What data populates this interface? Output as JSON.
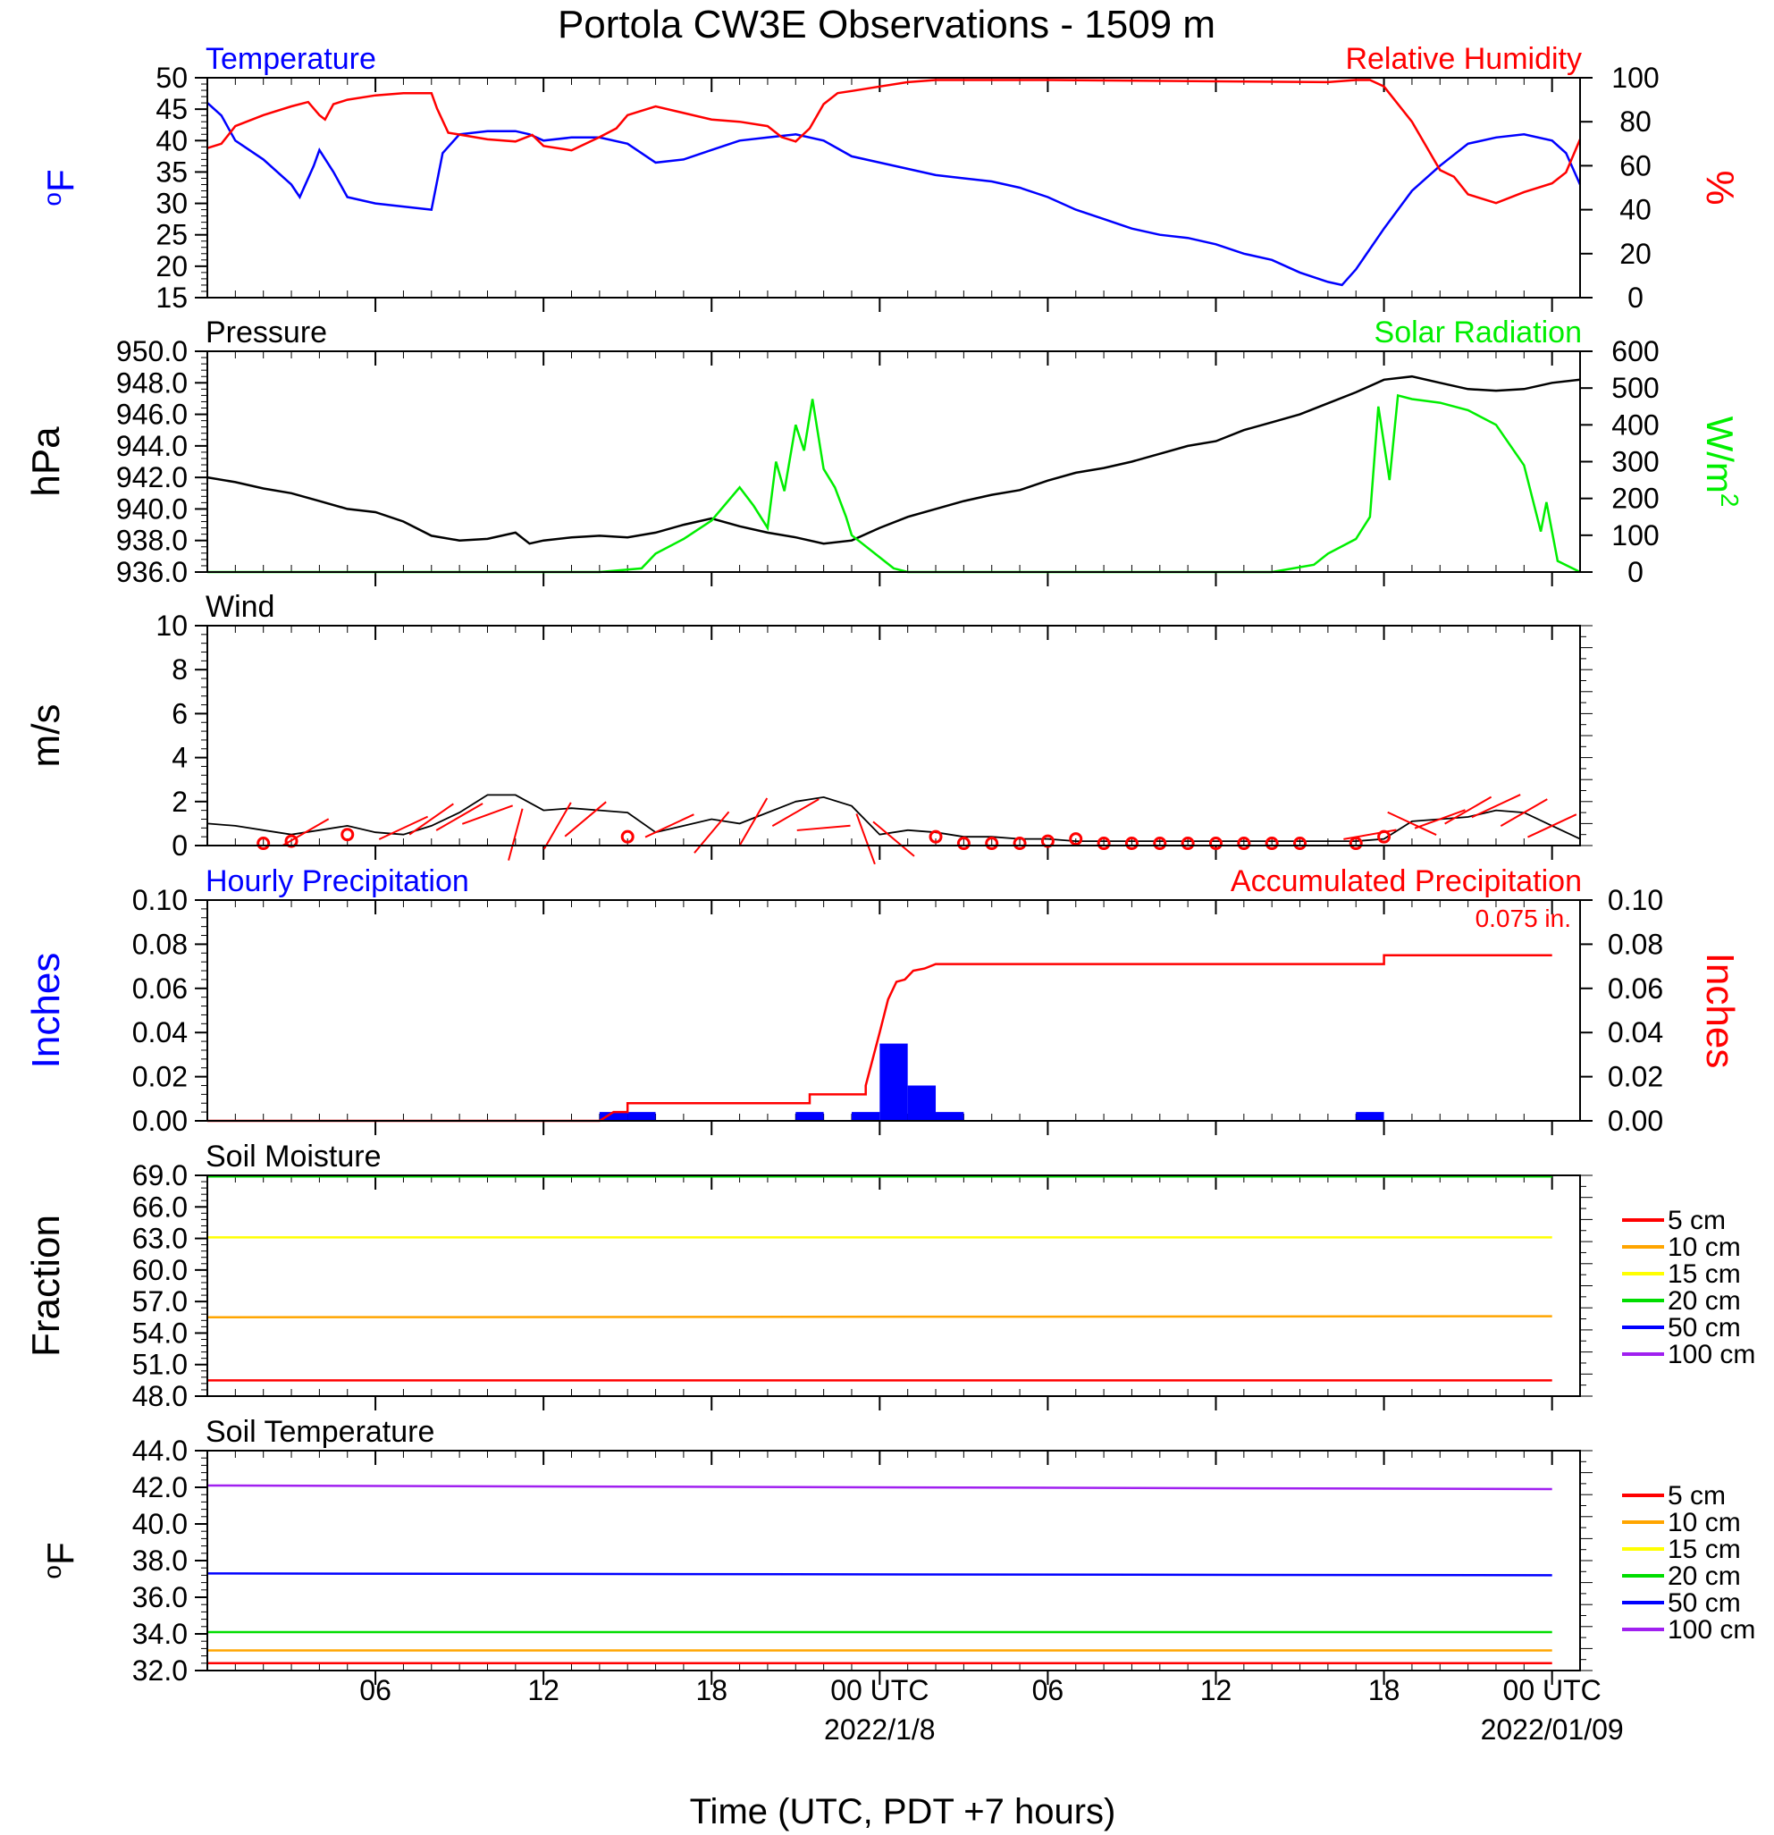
{
  "title": "Portola CW3E Observations - 1509 m",
  "xaxis": {
    "hours_range": [
      0,
      48
    ],
    "tick_hours": [
      6,
      12,
      18,
      24,
      30,
      36,
      42,
      48
    ],
    "tick_labels": [
      "06",
      "12",
      "18",
      "00 UTC",
      "06",
      "12",
      "18",
      "00 UTC"
    ],
    "date_labels": [
      {
        "hour": 24,
        "text": "2022/1/8"
      },
      {
        "hour": 48,
        "text": "2022/01/09"
      }
    ],
    "label": "Time (UTC, PDT +7 hours)"
  },
  "colors": {
    "temperature": "#0000ff",
    "humidity": "#ff0000",
    "pressure": "#000000",
    "solar": "#00ee00",
    "wind": "#000000",
    "barb": "#ff0000",
    "hourly_precip": "#0000ff",
    "accum_precip": "#ff0000",
    "depth_5cm": "#ff0000",
    "depth_10cm": "#ffa500",
    "depth_15cm": "#ffff00",
    "depth_20cm": "#00dd00",
    "depth_50cm": "#0000ff",
    "depth_100cm": "#a020f0"
  },
  "chart_data": [
    {
      "type": "line",
      "panel": "temperature_humidity",
      "left_title": "Temperature",
      "right_title": "Relative Humidity",
      "ylabel_left": "oF",
      "ylabel_right": "%",
      "ylim_left": [
        15,
        50
      ],
      "ylim_right": [
        0,
        100
      ],
      "yticks_left": [
        "50",
        "45",
        "40",
        "35",
        "30",
        "25",
        "20",
        "15"
      ],
      "yticks_right": [
        "100",
        "80",
        "60",
        "40",
        "20",
        "0"
      ],
      "series": [
        {
          "name": "Temperature",
          "axis": "left",
          "x": [
            0,
            0.5,
            1,
            2,
            3,
            3.3,
            3.8,
            4,
            4.5,
            5,
            6,
            7,
            8,
            8.4,
            9,
            10,
            11,
            11.5,
            12,
            13,
            14,
            15,
            16,
            17,
            18,
            19,
            20,
            21,
            22,
            23,
            24,
            25,
            26,
            27,
            28,
            29,
            30,
            31,
            32,
            33,
            34,
            35,
            36,
            37,
            38,
            39,
            40,
            40.5,
            41,
            42,
            43,
            44,
            45,
            46,
            47,
            48,
            48.5,
            49
          ],
          "y": [
            46,
            44,
            40,
            37,
            33,
            31,
            36,
            38.5,
            35,
            31,
            30,
            29.5,
            29,
            38,
            41,
            41.5,
            41.5,
            41,
            40,
            40.5,
            40.5,
            39.5,
            36.5,
            37,
            38.5,
            40,
            40.5,
            41,
            40,
            37.5,
            36.5,
            35.5,
            34.5,
            34,
            33.5,
            32.5,
            31,
            29,
            27.5,
            26,
            25,
            24.5,
            23.5,
            22,
            21,
            19,
            17.5,
            17,
            19.5,
            26,
            32,
            36,
            39.5,
            40.5,
            41,
            40,
            38,
            33
          ]
        },
        {
          "name": "Relative Humidity",
          "axis": "right",
          "x": [
            0,
            0.5,
            1,
            2,
            3,
            3.6,
            4,
            4.2,
            4.5,
            5,
            6,
            7,
            8,
            8.2,
            8.6,
            10,
            11,
            11.6,
            12,
            13,
            14,
            14.6,
            15,
            16,
            17,
            18,
            19,
            20,
            20.5,
            21,
            21.5,
            22,
            22.5,
            23,
            24,
            25,
            26,
            30,
            40,
            41,
            41.5,
            42,
            43,
            43.5,
            44,
            44.5,
            45,
            45.5,
            46,
            47,
            48,
            48.5,
            49
          ],
          "y": [
            68,
            70,
            78,
            83,
            87,
            89,
            83,
            81,
            88,
            90,
            92,
            93,
            93,
            86,
            75,
            72,
            71,
            74,
            69,
            67,
            73,
            77,
            83,
            87,
            84,
            81,
            80,
            78,
            73,
            71,
            77,
            88,
            93,
            94,
            96,
            98,
            99,
            99,
            98,
            99,
            99,
            96,
            80,
            69,
            58,
            55,
            47,
            45,
            43,
            48,
            52,
            57,
            72
          ]
        }
      ]
    },
    {
      "type": "line",
      "panel": "pressure_solar",
      "left_title": "Pressure",
      "right_title": "Solar Radiation",
      "ylabel_left": "hPa",
      "ylabel_right": "W/m2",
      "ylim_left": [
        936,
        950
      ],
      "ylim_right": [
        0,
        600
      ],
      "yticks_left": [
        "950.0",
        "948.0",
        "946.0",
        "944.0",
        "942.0",
        "940.0",
        "938.0",
        "936.0"
      ],
      "yticks_right": [
        "600",
        "500",
        "400",
        "300",
        "200",
        "100",
        "0"
      ],
      "series": [
        {
          "name": "Pressure",
          "axis": "left",
          "x": [
            0,
            1,
            2,
            3,
            4,
            5,
            6,
            7,
            8,
            9,
            10,
            11,
            11.5,
            12,
            13,
            14,
            15,
            16,
            17,
            18,
            19,
            20,
            21,
            22,
            23,
            24,
            25,
            26,
            27,
            28,
            29,
            30,
            31,
            32,
            33,
            34,
            35,
            36,
            37,
            38,
            39,
            40,
            41,
            42,
            43,
            44,
            45,
            46,
            47,
            48,
            49
          ],
          "y": [
            942.0,
            941.7,
            941.3,
            941.0,
            940.5,
            940.0,
            939.8,
            939.2,
            938.3,
            938.0,
            938.1,
            938.5,
            937.8,
            938.0,
            938.2,
            938.3,
            938.2,
            938.5,
            939.0,
            939.4,
            938.9,
            938.5,
            938.2,
            937.8,
            938.0,
            938.8,
            939.5,
            940.0,
            940.5,
            940.9,
            941.2,
            941.8,
            942.3,
            942.6,
            943.0,
            943.5,
            944.0,
            944.3,
            945.0,
            945.5,
            946.0,
            946.7,
            947.4,
            948.2,
            948.4,
            948.0,
            947.6,
            947.5,
            947.6,
            948.0,
            948.2
          ]
        },
        {
          "name": "Solar Radiation",
          "axis": "right",
          "x": [
            0,
            14,
            15.5,
            16,
            17,
            18,
            19,
            19.5,
            20,
            20.3,
            20.6,
            21,
            21.3,
            21.6,
            22,
            22.4,
            22.8,
            23,
            23.5,
            24,
            24.5,
            25,
            30,
            38,
            39.5,
            40,
            41,
            41.5,
            41.8,
            42.2,
            42.5,
            43,
            44,
            45,
            46,
            47,
            47.6,
            47.8,
            48.2,
            49
          ],
          "y": [
            0,
            0,
            10,
            50,
            90,
            140,
            230,
            180,
            120,
            300,
            220,
            400,
            330,
            470,
            280,
            230,
            150,
            100,
            70,
            40,
            10,
            0,
            0,
            0,
            20,
            50,
            90,
            150,
            450,
            250,
            480,
            470,
            460,
            440,
            400,
            290,
            110,
            190,
            30,
            0
          ]
        }
      ]
    },
    {
      "type": "line",
      "panel": "wind",
      "left_title": "Wind",
      "ylabel_left": "m/s",
      "ylim_left": [
        0,
        10
      ],
      "yticks_left": [
        "10",
        "8",
        "6",
        "4",
        "2",
        "0"
      ],
      "series": [
        {
          "name": "Wind",
          "axis": "left",
          "x": [
            0,
            1,
            2,
            3,
            4,
            5,
            6,
            7,
            8,
            9,
            10,
            11,
            12,
            13,
            14,
            15,
            16,
            17,
            18,
            19,
            20,
            21,
            22,
            23,
            24,
            25,
            26,
            27,
            28,
            29,
            30,
            31,
            32,
            33,
            34,
            35,
            36,
            37,
            38,
            39,
            40,
            41,
            42,
            43,
            44,
            45,
            46,
            47,
            48,
            49
          ],
          "y": [
            1.0,
            0.9,
            0.7,
            0.5,
            0.7,
            0.9,
            0.6,
            0.5,
            0.9,
            1.5,
            2.3,
            2.3,
            1.6,
            1.7,
            1.6,
            1.5,
            0.6,
            0.9,
            1.2,
            1.0,
            1.5,
            2.0,
            2.2,
            1.8,
            0.5,
            0.7,
            0.6,
            0.4,
            0.4,
            0.3,
            0.3,
            0.2,
            0.2,
            0.2,
            0.2,
            0.2,
            0.2,
            0.2,
            0.2,
            0.2,
            0.2,
            0.2,
            0.3,
            1.1,
            1.2,
            1.3,
            1.6,
            1.5,
            0.9,
            0.3
          ]
        }
      ],
      "barbs": [
        {
          "x": 2,
          "y": 0.1,
          "calm": true
        },
        {
          "x": 3,
          "y": 0.2,
          "calm": true
        },
        {
          "x": 3.5,
          "y": 0.6,
          "dir": -30
        },
        {
          "x": 5,
          "y": 0.5,
          "calm": true
        },
        {
          "x": 7,
          "y": 0.8,
          "dir": -25
        },
        {
          "x": 8,
          "y": 1.2,
          "dir": -35
        },
        {
          "x": 9,
          "y": 1.3,
          "dir": -30
        },
        {
          "x": 10,
          "y": 1.4,
          "dir": -20
        },
        {
          "x": 11,
          "y": 0.5,
          "dir": -75
        },
        {
          "x": 12.5,
          "y": 0.9,
          "dir": -60
        },
        {
          "x": 13.5,
          "y": 1.2,
          "dir": -40
        },
        {
          "x": 15,
          "y": 0.4,
          "calm": true
        },
        {
          "x": 16.5,
          "y": 0.9,
          "dir": -25
        },
        {
          "x": 18,
          "y": 0.6,
          "dir": -50
        },
        {
          "x": 19.5,
          "y": 1.1,
          "dir": -60
        },
        {
          "x": 21,
          "y": 1.5,
          "dir": -30
        },
        {
          "x": 22,
          "y": 0.8,
          "dir": -5
        },
        {
          "x": 23.5,
          "y": 0.3,
          "dir": 70
        },
        {
          "x": 24.5,
          "y": 0.3,
          "dir": 40
        },
        {
          "x": 26,
          "y": 0.4,
          "calm": true
        },
        {
          "x": 27,
          "y": 0.1,
          "calm": true
        },
        {
          "x": 28,
          "y": 0.1,
          "calm": true
        },
        {
          "x": 29,
          "y": 0.1,
          "calm": true
        },
        {
          "x": 30,
          "y": 0.2,
          "calm": true
        },
        {
          "x": 31,
          "y": 0.3,
          "calm": true
        },
        {
          "x": 32,
          "y": 0.1,
          "calm": true
        },
        {
          "x": 33,
          "y": 0.1,
          "calm": true
        },
        {
          "x": 34,
          "y": 0.1,
          "calm": true
        },
        {
          "x": 35,
          "y": 0.1,
          "calm": true
        },
        {
          "x": 36,
          "y": 0.1,
          "calm": true
        },
        {
          "x": 37,
          "y": 0.1,
          "calm": true
        },
        {
          "x": 38,
          "y": 0.1,
          "calm": true
        },
        {
          "x": 39,
          "y": 0.1,
          "calm": true
        },
        {
          "x": 41,
          "y": 0.1,
          "calm": true
        },
        {
          "x": 41.5,
          "y": 0.5,
          "dir": -10
        },
        {
          "x": 42,
          "y": 0.4,
          "calm": true
        },
        {
          "x": 43,
          "y": 1.0,
          "dir": 25
        },
        {
          "x": 44,
          "y": 1.2,
          "dir": -20
        },
        {
          "x": 45,
          "y": 1.6,
          "dir": -30
        },
        {
          "x": 46,
          "y": 1.8,
          "dir": -25
        },
        {
          "x": 47,
          "y": 1.5,
          "dir": -30
        },
        {
          "x": 48,
          "y": 0.9,
          "dir": -25
        }
      ]
    },
    {
      "type": "bar",
      "panel": "precipitation",
      "left_title": "Hourly Precipitation",
      "right_title": "Accumulated Precipitation",
      "ylabel_left": "Inches",
      "ylabel_right": "Inches",
      "ylim_left": [
        0,
        0.1
      ],
      "ylim_right": [
        0,
        0.1
      ],
      "yticks_left": [
        "0.10",
        "0.08",
        "0.06",
        "0.04",
        "0.02",
        "0.00"
      ],
      "yticks_right": [
        "0.10",
        "0.08",
        "0.06",
        "0.04",
        "0.02",
        "0.00"
      ],
      "total_label": "0.075 in.",
      "hourly": [
        {
          "x": 14,
          "value": 0.004
        },
        {
          "x": 15,
          "value": 0.004
        },
        {
          "x": 21,
          "value": 0.004
        },
        {
          "x": 23,
          "value": 0.004
        },
        {
          "x": 24,
          "value": 0.035
        },
        {
          "x": 25,
          "value": 0.016
        },
        {
          "x": 26,
          "value": 0.004
        },
        {
          "x": 41,
          "value": 0.004
        }
      ],
      "accumulated": {
        "name": "Accumulated Precipitation",
        "x": [
          0,
          14,
          14.5,
          15,
          15,
          21.5,
          21.5,
          23.5,
          23.5,
          24,
          24.3,
          24.6,
          24.9,
          25.2,
          25.6,
          26,
          26.5,
          42,
          42,
          48
        ],
        "y": [
          0,
          0,
          0.004,
          0.004,
          0.008,
          0.008,
          0.012,
          0.012,
          0.016,
          0.04,
          0.055,
          0.063,
          0.064,
          0.068,
          0.069,
          0.071,
          0.071,
          0.071,
          0.075,
          0.075
        ]
      }
    },
    {
      "type": "line",
      "panel": "soil_moisture",
      "left_title": "Soil Moisture",
      "ylabel_left": "Fraction",
      "ylim_left": [
        48,
        69
      ],
      "yticks_left": [
        "69.0",
        "66.0",
        "63.0",
        "60.0",
        "57.0",
        "54.0",
        "51.0",
        "48.0"
      ],
      "legend": [
        "5 cm",
        "10 cm",
        "15 cm",
        "20 cm",
        "50 cm",
        "100 cm"
      ],
      "series": [
        {
          "name": "5 cm",
          "x": [
            0,
            48
          ],
          "y": [
            49.5,
            49.5
          ]
        },
        {
          "name": "10 cm",
          "x": [
            0,
            48
          ],
          "y": [
            55.5,
            55.6
          ]
        },
        {
          "name": "15 cm",
          "x": [
            0,
            48
          ],
          "y": [
            63.1,
            63.1
          ]
        },
        {
          "name": "20 cm",
          "x": [
            0,
            48
          ],
          "y": [
            68.9,
            68.9
          ]
        }
      ]
    },
    {
      "type": "line",
      "panel": "soil_temperature",
      "left_title": "Soil Temperature",
      "ylabel_left": "oF",
      "ylim_left": [
        32,
        44
      ],
      "yticks_left": [
        "44.0",
        "42.0",
        "40.0",
        "38.0",
        "36.0",
        "34.0",
        "32.0"
      ],
      "legend": [
        "5 cm",
        "10 cm",
        "15 cm",
        "20 cm",
        "50 cm",
        "100 cm"
      ],
      "series": [
        {
          "name": "5 cm",
          "x": [
            0,
            48
          ],
          "y": [
            32.4,
            32.4
          ]
        },
        {
          "name": "10 cm",
          "x": [
            0,
            48
          ],
          "y": [
            33.1,
            33.1
          ]
        },
        {
          "name": "20 cm",
          "x": [
            0,
            48
          ],
          "y": [
            34.1,
            34.1
          ]
        },
        {
          "name": "50 cm",
          "x": [
            0,
            48
          ],
          "y": [
            37.3,
            37.2
          ]
        },
        {
          "name": "100 cm",
          "x": [
            0,
            48
          ],
          "y": [
            42.1,
            41.9
          ]
        }
      ]
    }
  ]
}
